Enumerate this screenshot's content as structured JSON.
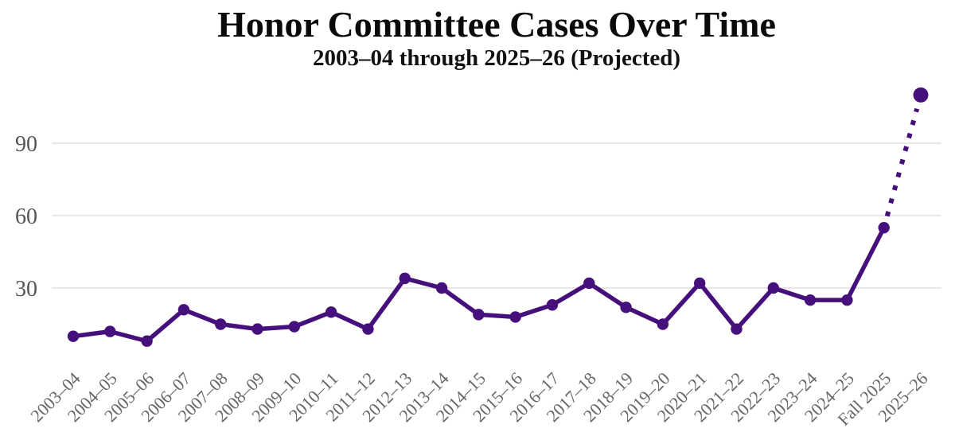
{
  "chart_data": {
    "type": "line",
    "title": "Honor Committee Cases Over Time",
    "subtitle": "2003–04 through 2025–26 (Projected)",
    "categories": [
      "2003–04",
      "2004–05",
      "2005–06",
      "2006–07",
      "2007–08",
      "2008–09",
      "2009–10",
      "2010–11",
      "2011–12",
      "2012–13",
      "2013–14",
      "2014–15",
      "2015–16",
      "2016–17",
      "2017–18",
      "2018–19",
      "2019–20",
      "2020–21",
      "2021–22",
      "2022–23",
      "2023–24",
      "2024–25",
      "Fall 2025",
      "2025–26"
    ],
    "series": [
      {
        "name": "Honor Committee Cases",
        "values": [
          10,
          12,
          8,
          21,
          15,
          13,
          14,
          20,
          13,
          34,
          30,
          19,
          18,
          23,
          32,
          22,
          15,
          32,
          13,
          30,
          25,
          25,
          55,
          110
        ]
      }
    ],
    "projected": {
      "category": "2025–26",
      "segment_style": "dotted",
      "note": "Last data point is projected"
    },
    "yticks": [
      30,
      60,
      90
    ],
    "ylim": [
      0,
      115
    ],
    "grid": "horizontal-only",
    "legend": "none",
    "xlabel": "",
    "ylabel": "",
    "colors": {
      "line": "#46107C",
      "marker": "#46107C",
      "grid": "#E8E8E8",
      "ytick_label": "#555555",
      "xtick_label": "#666666",
      "title": "#0A0A0A"
    }
  }
}
